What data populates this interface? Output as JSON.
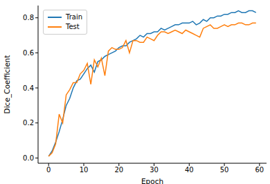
{
  "chart_data": {
    "type": "line",
    "x_label": "Epoch",
    "y_label": "Dice_Coefficient",
    "x": [
      0,
      1,
      2,
      3,
      4,
      5,
      6,
      7,
      8,
      9,
      10,
      11,
      12,
      13,
      14,
      15,
      16,
      17,
      18,
      19,
      20,
      21,
      22,
      23,
      24,
      25,
      26,
      27,
      28,
      29,
      30,
      31,
      32,
      33,
      34,
      35,
      36,
      37,
      38,
      39,
      40,
      41,
      42,
      43,
      44,
      45,
      46,
      47,
      48,
      49,
      50,
      51,
      52,
      53,
      54,
      55,
      56,
      57,
      58,
      59
    ],
    "series": [
      {
        "name": "Train",
        "color": "#1f77b4",
        "values": [
          0.01,
          0.04,
          0.09,
          0.15,
          0.22,
          0.3,
          0.34,
          0.4,
          0.44,
          0.45,
          0.48,
          0.51,
          0.53,
          0.49,
          0.55,
          0.56,
          0.58,
          0.59,
          0.6,
          0.61,
          0.63,
          0.64,
          0.64,
          0.66,
          0.67,
          0.68,
          0.7,
          0.69,
          0.71,
          0.71,
          0.72,
          0.72,
          0.74,
          0.73,
          0.74,
          0.75,
          0.76,
          0.76,
          0.77,
          0.77,
          0.77,
          0.78,
          0.76,
          0.77,
          0.79,
          0.78,
          0.8,
          0.8,
          0.81,
          0.81,
          0.82,
          0.82,
          0.83,
          0.83,
          0.84,
          0.83,
          0.83,
          0.84,
          0.84,
          0.83
        ]
      },
      {
        "name": "Test",
        "color": "#ff7f0e",
        "values": [
          0.01,
          0.03,
          0.08,
          0.25,
          0.2,
          0.36,
          0.39,
          0.43,
          0.43,
          0.48,
          0.5,
          0.54,
          0.42,
          0.56,
          0.52,
          0.57,
          0.47,
          0.61,
          0.63,
          0.62,
          0.62,
          0.63,
          0.67,
          0.6,
          0.67,
          0.67,
          0.66,
          0.66,
          0.69,
          0.68,
          0.67,
          0.7,
          0.72,
          0.72,
          0.71,
          0.72,
          0.73,
          0.72,
          0.71,
          0.73,
          0.72,
          0.71,
          0.7,
          0.69,
          0.74,
          0.75,
          0.76,
          0.74,
          0.74,
          0.75,
          0.76,
          0.75,
          0.76,
          0.76,
          0.77,
          0.77,
          0.76,
          0.76,
          0.77,
          0.77
        ]
      }
    ],
    "xlim": [
      -3,
      62
    ],
    "ylim": [
      -0.03,
      0.87
    ],
    "xticks": [
      0,
      10,
      20,
      30,
      40,
      50,
      60
    ],
    "yticks": [
      {
        "value": 0,
        "label": "0.0"
      },
      {
        "value": 0.2,
        "label": "0.2"
      },
      {
        "value": 0.4,
        "label": "0.4"
      },
      {
        "value": 0.6,
        "label": "0.6"
      },
      {
        "value": 0.8,
        "label": "0.8"
      }
    ],
    "legend": "upper left",
    "grid": false
  }
}
